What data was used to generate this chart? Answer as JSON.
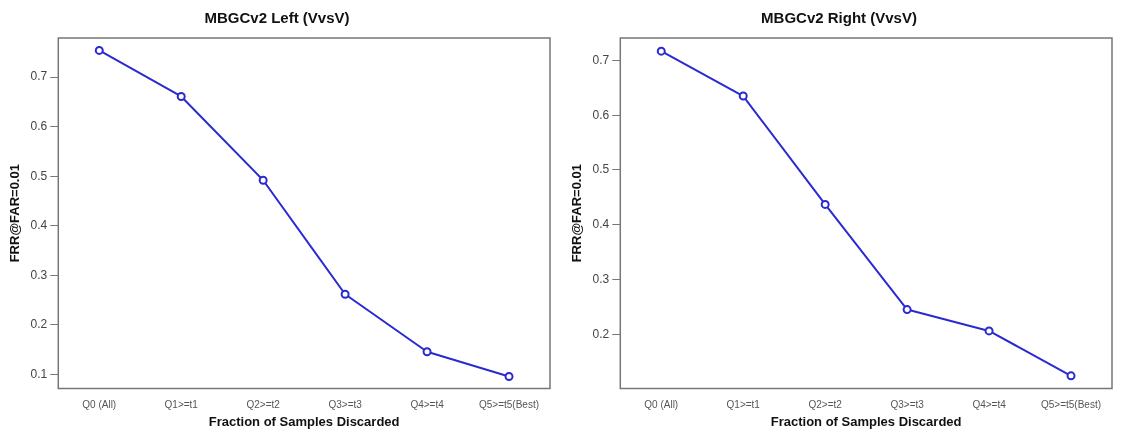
{
  "chart_data": [
    {
      "type": "line",
      "title": "MBGCv2 Left (VvsV)",
      "xlabel": "Fraction of Samples Discarded",
      "ylabel": "FRR@FAR=0.01",
      "categories": [
        "Q0 (All)",
        "Q1>=t1",
        "Q2>=t2",
        "Q3>=t3",
        "Q4>=t4",
        "Q5>=t5(Best)"
      ],
      "series": [
        {
          "color": "#2a2ad0",
          "values": [
            0.754,
            0.661,
            0.492,
            0.262,
            0.146,
            0.096
          ]
        }
      ],
      "ylim": [
        0.072,
        0.779
      ],
      "yticks": [
        0.1,
        0.2,
        0.3,
        0.4,
        0.5,
        0.6,
        0.7
      ],
      "marker": "circle"
    },
    {
      "type": "line",
      "title": "MBGCv2 Right (VvsV)",
      "xlabel": "Fraction of Samples Discarded",
      "ylabel": "FRR@FAR=0.01",
      "categories": [
        "Q0 (All)",
        "Q1>=t1",
        "Q2>=t2",
        "Q3>=t3",
        "Q4>=t4",
        "Q5>=t5(Best)"
      ],
      "series": [
        {
          "color": "#2a2ad0",
          "values": [
            0.717,
            0.635,
            0.437,
            0.245,
            0.206,
            0.124
          ]
        }
      ],
      "ylim": [
        0.101,
        0.741
      ],
      "yticks": [
        0.2,
        0.3,
        0.4,
        0.5,
        0.6,
        0.7
      ],
      "marker": "circle"
    }
  ]
}
